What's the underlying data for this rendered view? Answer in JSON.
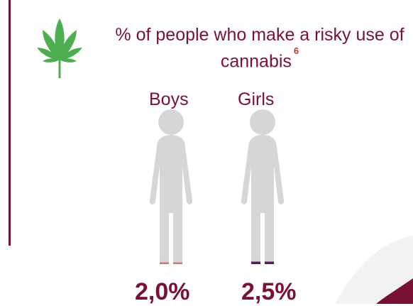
{
  "title": "% of people who make a risky use of cannabis",
  "footnote": "6",
  "icon": "cannabis-leaf-icon",
  "colors": {
    "accent": "#7b1037",
    "figure": "#d6d6d6",
    "boys_fill": "#d9745c",
    "girls_fill": "#5b1a57",
    "leaf": "#4cae4f"
  },
  "chart_data": {
    "type": "pictograph",
    "title": "% of people who make a risky use of cannabis",
    "categories": [
      "Boys",
      "Girls"
    ],
    "values": [
      2.0,
      2.5
    ],
    "value_labels": [
      "2,0%",
      "2,5%"
    ],
    "unit": "%",
    "ylim": [
      0,
      100
    ]
  }
}
